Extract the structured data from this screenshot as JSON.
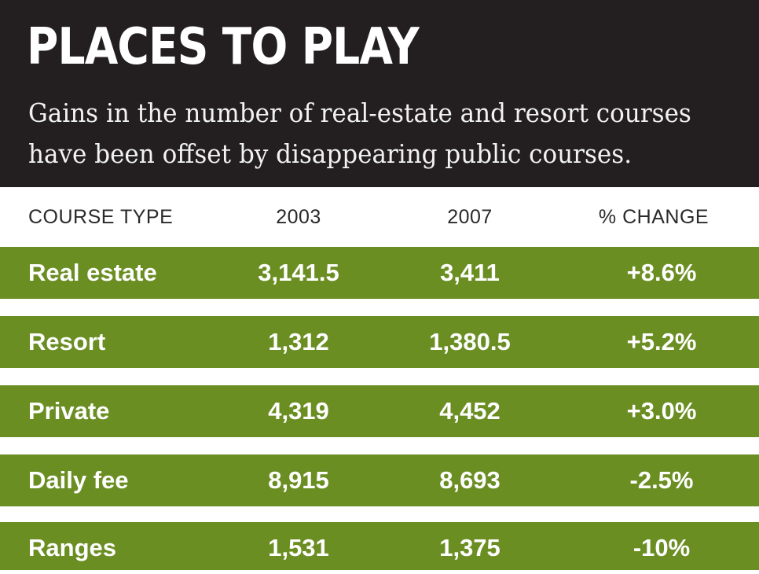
{
  "chart_data": {
    "type": "table",
    "title": "PLACES TO PLAY",
    "subtitle": "Gains in the number of real-estate and resort courses have been offset by disappearing public courses.",
    "columns": [
      "COURSE TYPE",
      "2003",
      "2007",
      "% CHANGE"
    ],
    "rows": [
      {
        "type": "Real estate",
        "y2003": "3,141.5",
        "y2007": "3,411",
        "change": "+8.6%"
      },
      {
        "type": "Resort",
        "y2003": "1,312",
        "y2007": "1,380.5",
        "change": "+5.2%"
      },
      {
        "type": "Private",
        "y2003": "4,319",
        "y2007": "4,452",
        "change": "+3.0%"
      },
      {
        "type": "Daily fee",
        "y2003": "8,915",
        "y2007": "8,693",
        "change": "-2.5%"
      },
      {
        "type": "Ranges",
        "y2003": "1,531",
        "y2007": "1,375",
        "change": "-10%"
      }
    ]
  },
  "colors": {
    "header_bg": "#231f20",
    "row_bg": "#6b8e23",
    "row_text": "#ffffff"
  }
}
